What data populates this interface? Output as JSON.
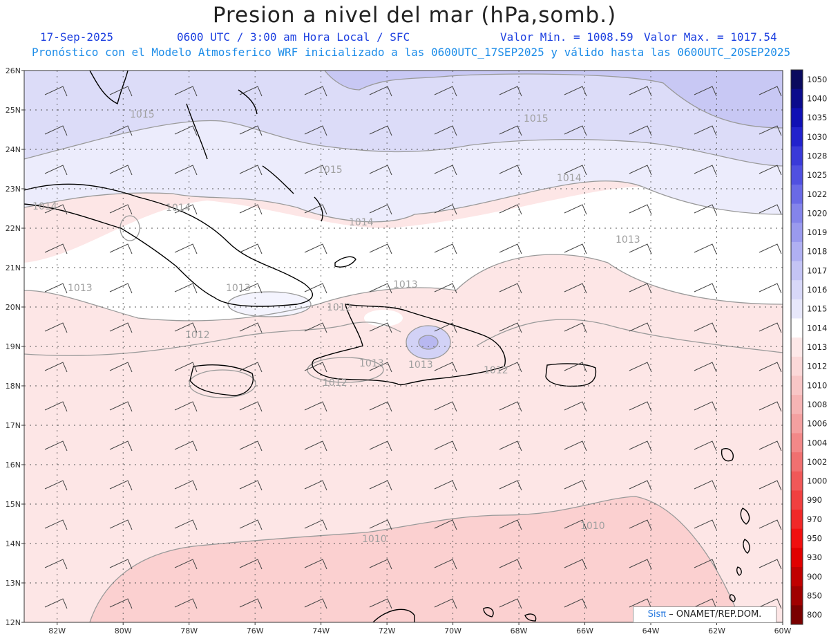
{
  "header": {
    "title": "Presion a nivel del mar (hPa,somb.)",
    "date": "17-Sep-2025",
    "time": "0600 UTC / 3:00 am Hora Local / SFC",
    "min": "Valor Min. = 1008.59",
    "max": "Valor Max. = 1017.54",
    "model_line": "Pronóstico con el Modelo Atmosferico WRF inicializado a las 0600UTC_17SEP2025 y válido hasta las  0600UTC_20SEP2025"
  },
  "map": {
    "lat_ticks": [
      "26N",
      "25N",
      "24N",
      "23N",
      "22N",
      "21N",
      "20N",
      "19N",
      "18N",
      "17N",
      "16N",
      "15N",
      "14N",
      "13N",
      "12N"
    ],
    "lon_ticks": [
      "82W",
      "80W",
      "78W",
      "76W",
      "74W",
      "72W",
      "70W",
      "68W",
      "66W",
      "64W",
      "62W",
      "60W"
    ],
    "contour_labels": [
      {
        "id": "c1015a",
        "text": "1015"
      },
      {
        "id": "c1015b",
        "text": "1015"
      },
      {
        "id": "c1015c",
        "text": "1015"
      },
      {
        "id": "c1014a",
        "text": "1014"
      },
      {
        "id": "c1014b",
        "text": "1014"
      },
      {
        "id": "c1014c",
        "text": "1014"
      },
      {
        "id": "c1014d",
        "text": "1014"
      },
      {
        "id": "c1013a",
        "text": "1013"
      },
      {
        "id": "c1013b",
        "text": "1013"
      },
      {
        "id": "c1013c",
        "text": "1013"
      },
      {
        "id": "c1013d",
        "text": "1013"
      },
      {
        "id": "c1013e",
        "text": "1013"
      },
      {
        "id": "c1013f",
        "text": "1013"
      },
      {
        "id": "c1012a",
        "text": "1012"
      },
      {
        "id": "c1012b",
        "text": "1012"
      },
      {
        "id": "c1012c",
        "text": "1012"
      },
      {
        "id": "c1012d",
        "text": "1012"
      },
      {
        "id": "c1010a",
        "text": "1010"
      },
      {
        "id": "c1010b",
        "text": "1010"
      }
    ]
  },
  "colorbar": {
    "levels": [
      "1050",
      "1040",
      "1035",
      "1030",
      "1028",
      "1025",
      "1022",
      "1020",
      "1019",
      "1018",
      "1017",
      "1016",
      "1015",
      "1014",
      "1013",
      "1012",
      "1010",
      "1008",
      "1006",
      "1004",
      "1002",
      "1000",
      "990",
      "970",
      "950",
      "930",
      "900",
      "850",
      "800"
    ],
    "colors": [
      "#0a0a5e",
      "#0b0b8c",
      "#1010b4",
      "#2222cc",
      "#3a3ad8",
      "#5050e0",
      "#6a6ae6",
      "#8484ea",
      "#9a9aee",
      "#b0b0f2",
      "#c4c4f5",
      "#d8d8f8",
      "#e8e8fb",
      "#ffffff",
      "#fde8e8",
      "#fbd8d8",
      "#f8c6c6",
      "#f6b4b4",
      "#f4a0a0",
      "#f28888",
      "#f07070",
      "#f05858",
      "#f04040",
      "#f02828",
      "#f01010",
      "#e00000",
      "#c00000",
      "#a00000",
      "#7a0000"
    ]
  },
  "credit": {
    "brand": "Sisπ",
    "text": "– ONAMET/REP.DOM."
  }
}
